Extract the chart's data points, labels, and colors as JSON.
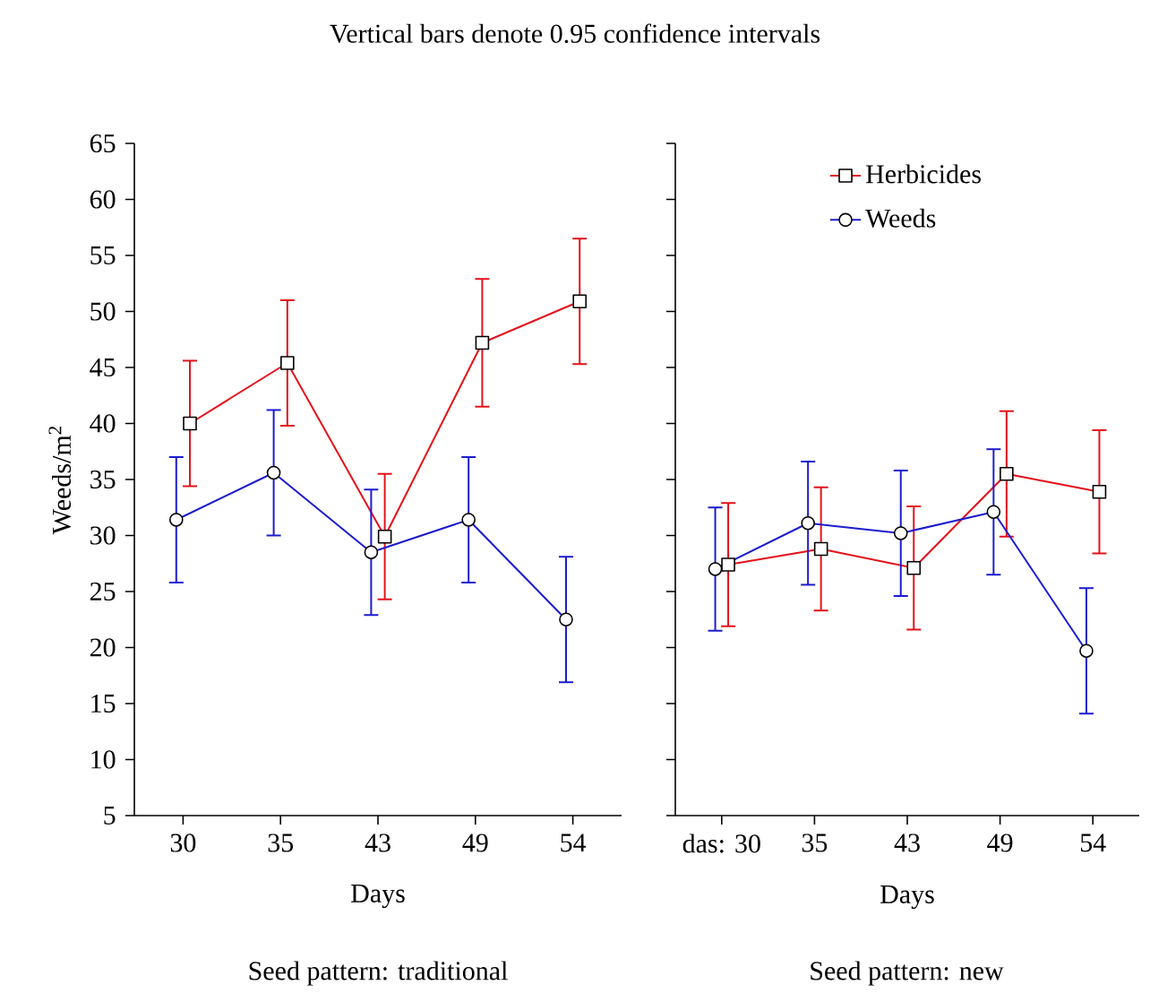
{
  "chart_data": [
    {
      "type": "line",
      "title": "Vertical bars denote 0.95 confidence intervals",
      "xlabel": "Days",
      "ylabel": "Weeds/m$^{2}$",
      "categories": [
        "30",
        "35",
        "43",
        "49",
        "54"
      ],
      "ylim": [
        5,
        65
      ],
      "yticks": [
        5,
        10,
        15,
        20,
        25,
        30,
        35,
        40,
        45,
        50,
        55,
        60,
        65
      ],
      "annotations": [
        "Seed pattern: traditional"
      ],
      "series": [
        {
          "color": "#e3121b",
          "marker": "square",
          "values": [
            40.0,
            45.4,
            29.9,
            47.2,
            50.9
          ],
          "errors": [
            5.6,
            5.6,
            5.6,
            5.7,
            5.6
          ]
        },
        {
          "color": "#1c1ccf",
          "marker": "circle",
          "values": [
            31.4,
            35.6,
            28.5,
            31.4,
            22.5
          ],
          "errors": [
            5.6,
            5.6,
            5.6,
            5.6,
            5.6
          ]
        }
      ]
    },
    {
      "type": "line",
      "xlabel": "Days",
      "categories": [
        "das: 30",
        "35",
        "43",
        "49",
        "54"
      ],
      "ylim": [
        5,
        65
      ],
      "yticks": [
        5,
        10,
        15,
        20,
        25,
        30,
        35,
        40,
        45,
        50,
        55,
        60,
        65
      ],
      "tick_labels": "x",
      "legend": "top",
      "annotations": [
        "Seed pattern: new"
      ],
      "series": [
        {
          "name": "Herbicides",
          "color": "#e3121b",
          "marker": "square",
          "values": [
            27.4,
            28.8,
            27.1,
            35.5,
            33.9
          ],
          "errors": [
            5.5,
            5.5,
            5.5,
            5.6,
            5.5
          ]
        },
        {
          "name": "Weeds",
          "color": "#1c1ccf",
          "marker": "circle",
          "values": [
            27.0,
            31.1,
            30.2,
            32.1,
            19.7
          ],
          "errors": [
            5.5,
            5.5,
            5.6,
            5.6,
            5.6
          ]
        }
      ]
    }
  ]
}
